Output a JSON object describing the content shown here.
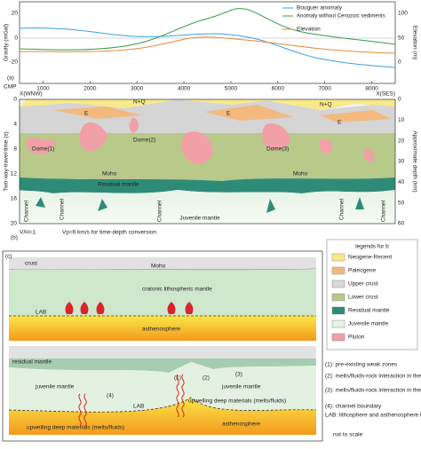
{
  "panel_a": {
    "label": "(a)",
    "y_label": "Gravity (mGal)",
    "y2_label": "Elevation (m)",
    "x_label": "CMP",
    "yticks": [
      20,
      0,
      -20
    ],
    "y2ticks": [
      100,
      50,
      0
    ],
    "xticks": [
      1000,
      2000,
      3000,
      4000,
      5000,
      6000,
      7000,
      8000
    ],
    "legend": [
      "Bouguer anomaly",
      "Anomaly without Cenozoic sediments",
      "Elevation"
    ]
  },
  "panel_b": {
    "label": "(b)",
    "left_end": "X(WNW)",
    "right_end": "X(SES)",
    "y_label": "Two-way-travel-time (s)",
    "y2_label": "Approximate depth (km)",
    "yticks": [
      0,
      4,
      8,
      12,
      16,
      20
    ],
    "y2ticks": [
      0,
      10,
      20,
      30,
      40,
      50,
      60
    ],
    "units": [
      "N+Q",
      "E",
      "E",
      "N+Q",
      "E"
    ],
    "domes": [
      "Dome(1)",
      "Dome(2)",
      "Dome(3)"
    ],
    "moho": [
      "Moho",
      "Moho"
    ],
    "residual": "Residual mantle",
    "channels": [
      "Channel",
      "Channel",
      "Channel",
      "Channel",
      "Channel"
    ],
    "juvenile": "Juvenile mantle",
    "scale": "V/H=1",
    "velocity": "Vp=6 km/s for time-depth conversion"
  },
  "legend_b": {
    "title": "legends for b",
    "items": [
      "Neogene-Recent",
      "Paleogene",
      "Upper crust",
      "Lower crust",
      "Residual mantle",
      "Juvenile mantle",
      "Pluton"
    ]
  },
  "panel_c": {
    "label": "(c)",
    "top": {
      "crust": "crust",
      "moho": "Moho",
      "mantle": "cratonic lithospheric mantle",
      "lab": "LAB",
      "asthenosphere": "asthenosphere"
    },
    "bottom": {
      "residual": "residual mantle",
      "juvenile": [
        "juvenile mantle",
        "juvenile mantle"
      ],
      "markers": [
        "(1)",
        "(2)",
        "(3)",
        "(4)"
      ],
      "upwelling": [
        "upwelling deep materials (melts/fluids)",
        "upwelling deep materials (melts/fluids)"
      ],
      "lab": "LAB",
      "asthenosphere": "asthenosphere"
    },
    "notes": [
      "(1): pre-existing weak zones",
      "(2): melts/fluids-rock interaction in the channels",
      "(3): melts/fluids-rock interaction in the vicinity of channels",
      "(4): channel boundary",
      "LAB: lithosphere and asthenosphere boundary"
    ],
    "footnote": "not to scale"
  }
}
